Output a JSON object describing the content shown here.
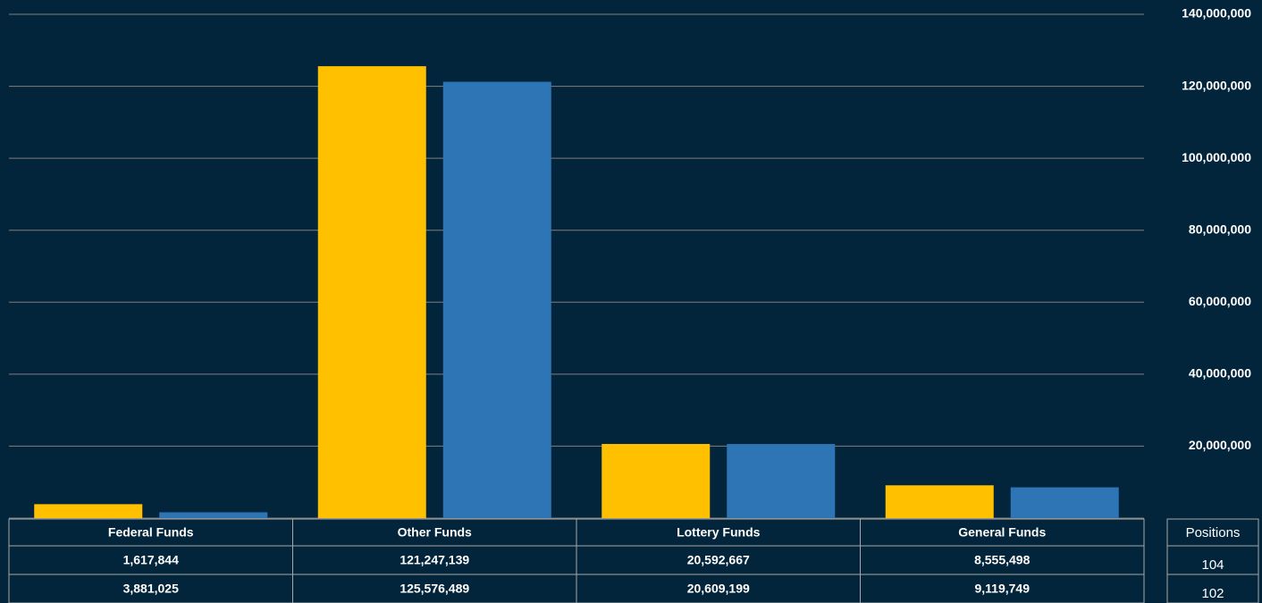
{
  "chart_data": {
    "type": "bar",
    "categories": [
      "Federal Funds",
      "Other Funds",
      "Lottery Funds",
      "General Funds"
    ],
    "series": [
      {
        "color": "#2e75b6",
        "values": [
          1617844,
          121247139,
          20592667,
          8555498
        ],
        "value_labels": [
          "1,617,844",
          "121,247,139",
          "20,592,667",
          "8,555,498"
        ]
      },
      {
        "color": "#ffc000",
        "values": [
          3881025,
          125576489,
          20609199,
          9119749
        ],
        "value_labels": [
          "3,881,025",
          "125,576,489",
          "20,609,199",
          "9,119,749"
        ]
      }
    ],
    "ylim": [
      0,
      140000000
    ],
    "yticks": [
      {
        "value": 20000000,
        "label": "20,000,000"
      },
      {
        "value": 40000000,
        "label": "40,000,000"
      },
      {
        "value": 60000000,
        "label": "60,000,000"
      },
      {
        "value": 80000000,
        "label": "80,000,000"
      },
      {
        "value": 100000000,
        "label": "100,000,000"
      },
      {
        "value": 120000000,
        "label": "120,000,000"
      },
      {
        "value": 140000000,
        "label": "140,000,000"
      }
    ],
    "grid": true,
    "positions": {
      "label": "Positions",
      "values": [
        104,
        102
      ]
    }
  }
}
